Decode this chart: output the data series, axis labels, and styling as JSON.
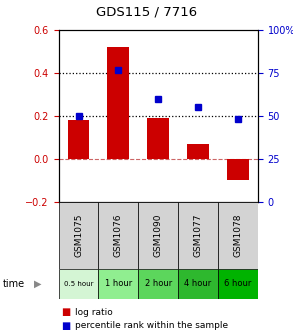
{
  "title": "GDS115 / 7716",
  "categories": [
    "GSM1075",
    "GSM1076",
    "GSM1090",
    "GSM1077",
    "GSM1078"
  ],
  "time_labels": [
    "0.5 hour",
    "1 hour",
    "2 hour",
    "4 hour",
    "6 hour"
  ],
  "time_colors": [
    "#d4f5d4",
    "#90ee90",
    "#5cd65c",
    "#2eb82e",
    "#00b300"
  ],
  "log_ratios": [
    0.18,
    0.52,
    0.19,
    0.07,
    -0.1
  ],
  "percentile_ranks": [
    50,
    77,
    60,
    55,
    48
  ],
  "bar_color": "#cc0000",
  "square_color": "#0000cc",
  "left_ylim": [
    -0.2,
    0.6
  ],
  "right_ylim": [
    0,
    100
  ],
  "left_yticks": [
    -0.2,
    0.0,
    0.2,
    0.4,
    0.6
  ],
  "right_yticks": [
    0,
    25,
    50,
    75,
    100
  ],
  "right_yticklabels": [
    "0",
    "25",
    "50",
    "75",
    "100%"
  ],
  "hline_y": [
    0.2,
    0.4
  ],
  "zero_line_y": 0.0,
  "legend_bar_label": "log ratio",
  "legend_sq_label": "percentile rank within the sample",
  "bar_color_left": "#cc0000",
  "right_axis_color": "#0000cc",
  "bar_width": 0.55,
  "gsm_bg": "#d3d3d3",
  "zero_line_color": "#cc6666"
}
